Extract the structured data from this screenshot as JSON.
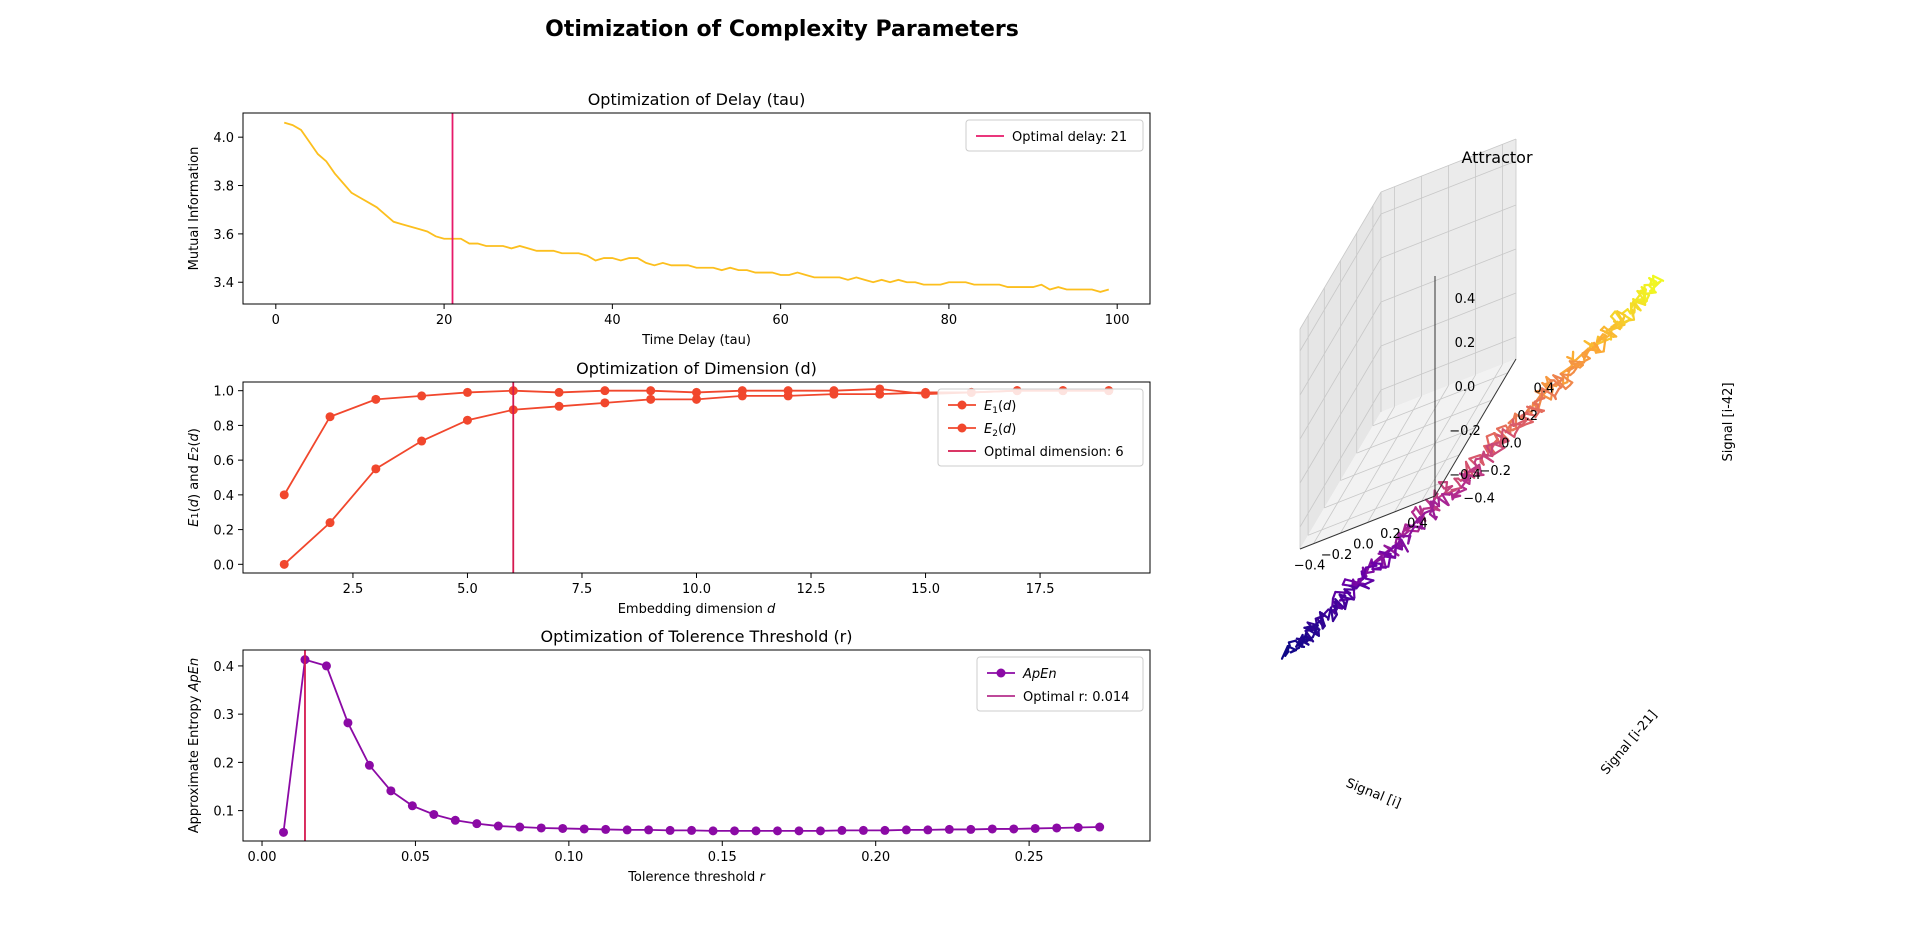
{
  "figure": {
    "title": "Otimization of Complexity Parameters"
  },
  "chart_data": [
    {
      "id": "delay",
      "type": "line",
      "title": "Optimization of Delay (tau)",
      "xlabel": "Time Delay (tau)",
      "ylabel": "Mutual Information",
      "xlim": [
        -3.9,
        103.9
      ],
      "ylim": [
        3.31,
        4.1
      ],
      "xticks": [
        0,
        20,
        40,
        60,
        80,
        100
      ],
      "yticks": [
        3.4,
        3.6,
        3.8,
        4.0
      ],
      "ytick_labels": [
        "3.4",
        "3.6",
        "3.8",
        "4.0"
      ],
      "series_color": "#fcbf1e",
      "x": [
        1,
        2,
        3,
        4,
        5,
        6,
        7,
        8,
        9,
        10,
        11,
        12,
        13,
        14,
        15,
        16,
        17,
        18,
        19,
        20,
        21,
        22,
        23,
        24,
        25,
        26,
        27,
        28,
        29,
        30,
        31,
        32,
        33,
        34,
        35,
        36,
        37,
        38,
        39,
        40,
        41,
        42,
        43,
        44,
        45,
        46,
        47,
        48,
        49,
        50,
        51,
        52,
        53,
        54,
        55,
        56,
        57,
        58,
        59,
        60,
        61,
        62,
        63,
        64,
        65,
        66,
        67,
        68,
        69,
        70,
        71,
        72,
        73,
        74,
        75,
        76,
        77,
        78,
        79,
        80,
        81,
        82,
        83,
        84,
        85,
        86,
        87,
        88,
        89,
        90,
        91,
        92,
        93,
        94,
        95,
        96,
        97,
        98,
        99
      ],
      "y": [
        4.06,
        4.05,
        4.03,
        3.98,
        3.93,
        3.9,
        3.85,
        3.81,
        3.77,
        3.75,
        3.73,
        3.71,
        3.68,
        3.65,
        3.64,
        3.63,
        3.62,
        3.61,
        3.59,
        3.58,
        3.58,
        3.58,
        3.56,
        3.56,
        3.55,
        3.55,
        3.55,
        3.54,
        3.55,
        3.54,
        3.53,
        3.53,
        3.53,
        3.52,
        3.52,
        3.52,
        3.51,
        3.49,
        3.5,
        3.5,
        3.49,
        3.5,
        3.5,
        3.48,
        3.47,
        3.48,
        3.47,
        3.47,
        3.47,
        3.46,
        3.46,
        3.46,
        3.45,
        3.46,
        3.45,
        3.45,
        3.44,
        3.44,
        3.44,
        3.43,
        3.43,
        3.44,
        3.43,
        3.42,
        3.42,
        3.42,
        3.42,
        3.41,
        3.42,
        3.41,
        3.4,
        3.41,
        3.4,
        3.41,
        3.4,
        3.4,
        3.39,
        3.39,
        3.39,
        3.4,
        3.4,
        3.4,
        3.39,
        3.39,
        3.39,
        3.39,
        3.38,
        3.38,
        3.38,
        3.38,
        3.39,
        3.37,
        3.38,
        3.37,
        3.37,
        3.37,
        3.37,
        3.36,
        3.37
      ],
      "optimal": {
        "value": 21,
        "color": "#e7196a"
      },
      "legend": [
        {
          "label": "Optimal delay: 21",
          "color": "#e7196a",
          "marker": false
        }
      ]
    },
    {
      "id": "dimension",
      "type": "line",
      "title": "Optimization of Dimension (d)",
      "xlabel": "Embedding dimension d",
      "ylabel": "E1(d) and E2(d)",
      "xlim": [
        0.1,
        19.9
      ],
      "ylim": [
        -0.05,
        1.05
      ],
      "xticks": [
        2.5,
        5.0,
        7.5,
        10.0,
        12.5,
        15.0,
        17.5
      ],
      "xtick_labels": [
        "2.5",
        "5.0",
        "7.5",
        "10.0",
        "12.5",
        "15.0",
        "17.5"
      ],
      "yticks": [
        0.0,
        0.2,
        0.4,
        0.6,
        0.8,
        1.0
      ],
      "ytick_labels": [
        "0.0",
        "0.2",
        "0.4",
        "0.6",
        "0.8",
        "1.0"
      ],
      "x": [
        1,
        2,
        3,
        4,
        5,
        6,
        7,
        8,
        9,
        10,
        11,
        12,
        13,
        14,
        15,
        16,
        17,
        18,
        19
      ],
      "series": [
        {
          "name": "E1(d)",
          "color": "#f1472d",
          "values": [
            0.0,
            0.24,
            0.55,
            0.71,
            0.83,
            0.89,
            0.91,
            0.93,
            0.95,
            0.95,
            0.97,
            0.97,
            0.98,
            0.98,
            0.99,
            0.99,
            1.0,
            1.0,
            1.0
          ]
        },
        {
          "name": "E2(d)",
          "color": "#f1472d",
          "values": [
            0.4,
            0.85,
            0.95,
            0.97,
            0.99,
            1.0,
            0.99,
            1.0,
            1.0,
            0.99,
            1.0,
            1.0,
            1.0,
            1.01,
            0.98,
            0.99,
            1.0,
            1.0,
            1.0
          ]
        }
      ],
      "optimal": {
        "value": 6,
        "color": "#d5194f"
      },
      "legend": [
        {
          "label": "E1(d)",
          "base": "E",
          "sub": "1",
          "suffix": "(d)",
          "color": "#f1472d",
          "marker": true
        },
        {
          "label": "E2(d)",
          "base": "E",
          "sub": "2",
          "suffix": "(d)",
          "color": "#f1472d",
          "marker": true
        },
        {
          "label": "Optimal dimension: 6",
          "color": "#d5194f",
          "marker": false
        }
      ]
    },
    {
      "id": "tolerance",
      "type": "line",
      "title": "Optimization of Tolerence Threshold (r)",
      "xlabel": "Tolerence threshold r",
      "ylabel": "Approximate Entropy ApEn",
      "xlim": [
        -0.0062,
        0.2894
      ],
      "ylim": [
        0.037,
        0.433
      ],
      "xticks": [
        0.0,
        0.05,
        0.1,
        0.15,
        0.2,
        0.25
      ],
      "xtick_labels": [
        "0.00",
        "0.05",
        "0.10",
        "0.15",
        "0.20",
        "0.25"
      ],
      "yticks": [
        0.1,
        0.2,
        0.3,
        0.4
      ],
      "ytick_labels": [
        "0.1",
        "0.2",
        "0.3",
        "0.4"
      ],
      "series_color": "#8b0aa5",
      "x": [
        0.007,
        0.014,
        0.021,
        0.028,
        0.035,
        0.042,
        0.049,
        0.056,
        0.063,
        0.07,
        0.077,
        0.084,
        0.091,
        0.098,
        0.105,
        0.112,
        0.119,
        0.126,
        0.133,
        0.14,
        0.147,
        0.154,
        0.161,
        0.168,
        0.175,
        0.182,
        0.189,
        0.196,
        0.203,
        0.21,
        0.217,
        0.224,
        0.231,
        0.238,
        0.245,
        0.252,
        0.259,
        0.266,
        0.273
      ],
      "y": [
        0.055,
        0.413,
        0.4,
        0.282,
        0.194,
        0.141,
        0.11,
        0.092,
        0.08,
        0.073,
        0.068,
        0.066,
        0.064,
        0.063,
        0.062,
        0.061,
        0.06,
        0.06,
        0.059,
        0.059,
        0.058,
        0.058,
        0.058,
        0.058,
        0.058,
        0.058,
        0.059,
        0.059,
        0.059,
        0.06,
        0.06,
        0.061,
        0.061,
        0.062,
        0.062,
        0.063,
        0.064,
        0.065,
        0.066
      ],
      "optimal": {
        "value": 0.014,
        "color": "#d5194f"
      },
      "legend": [
        {
          "label": "ApEn",
          "color": "#8b0aa5",
          "marker": true,
          "italic": true
        },
        {
          "label": "Optimal r: 0.014",
          "color": "#b42e8c",
          "marker": false
        }
      ]
    },
    {
      "id": "attractor",
      "type": "line3d",
      "title": "Attractor",
      "xlabel": "Signal [i]",
      "ylabel": "Signal [i-21]",
      "zlabel": "Signal [i-42]",
      "x_tick_labels": [
        "−0.4",
        "−0.2",
        "0.0",
        "0.2",
        "0.4"
      ],
      "y_tick_labels": [
        "−0.4",
        "−0.2",
        "0.0",
        "0.2",
        "0.4"
      ],
      "z_tick_labels": [
        "−0.4",
        "−0.2",
        "0.0",
        "0.2",
        "0.4"
      ],
      "colormap": "plasma",
      "colormap_stops": [
        "#0d0887",
        "#6a00a8",
        "#b12a90",
        "#e16462",
        "#fca636",
        "#f0f921"
      ],
      "pane_color": "#f2f2f2",
      "grid_color": "#c8c8c8"
    }
  ]
}
